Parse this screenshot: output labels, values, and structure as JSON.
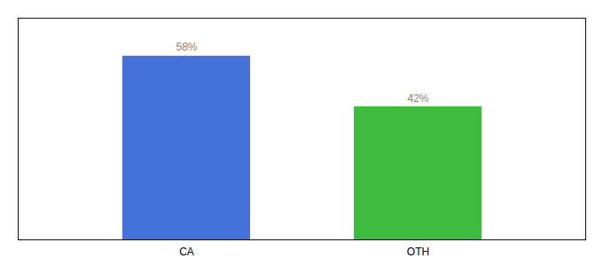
{
  "chart_data": {
    "type": "bar",
    "categories": [
      "CA",
      "OTH"
    ],
    "values": [
      58,
      42
    ],
    "value_labels": [
      "58%",
      "42%"
    ],
    "colors": [
      "#4472db",
      "#3dbb3d"
    ],
    "ylim": [
      0,
      70
    ],
    "data_labels": true,
    "tick_labels": "x",
    "grid": false
  }
}
